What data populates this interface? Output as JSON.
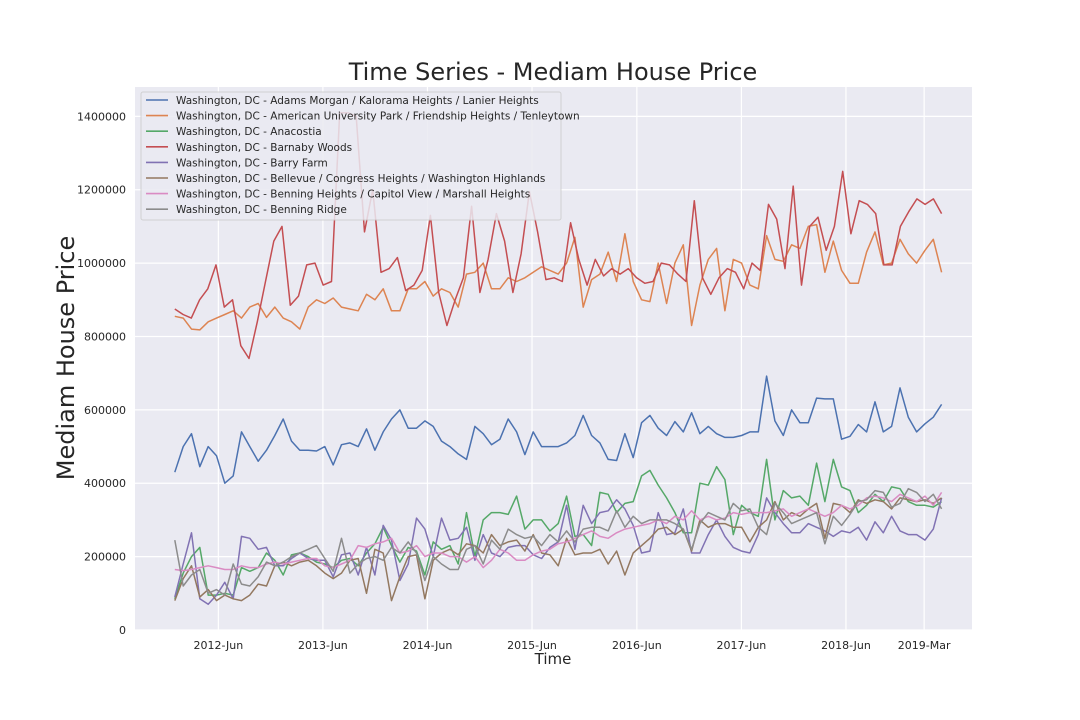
{
  "chart_data": {
    "type": "line",
    "title": "Time Series - Mediam House Price",
    "xlabel": "Time",
    "ylabel": "Mediam House Price",
    "x_axis": {
      "kind": "date",
      "range": [
        "2011-08-15",
        "2019-08-15"
      ],
      "ticks": [
        {
          "date": "2012-06-01",
          "label": "2012-Jun"
        },
        {
          "date": "2013-06-01",
          "label": "2013-Jun"
        },
        {
          "date": "2014-06-01",
          "label": "2014-Jun"
        },
        {
          "date": "2015-06-01",
          "label": "2015-Jun"
        },
        {
          "date": "2016-06-01",
          "label": "2016-Jun"
        },
        {
          "date": "2017-06-01",
          "label": "2017-Jun"
        },
        {
          "date": "2018-06-01",
          "label": "2018-Jun"
        },
        {
          "date": "2019-03-01",
          "label": "2019-Mar"
        }
      ]
    },
    "ylim": [
      0,
      1480000
    ],
    "y_ticks": [
      {
        "value": 0,
        "label": "0"
      },
      {
        "value": 200000,
        "label": "200000"
      },
      {
        "value": 400000,
        "label": "400000"
      },
      {
        "value": 600000,
        "label": "600000"
      },
      {
        "value": 800000,
        "label": "800000"
      },
      {
        "value": 1000000,
        "label": "1000000"
      },
      {
        "value": 1200000,
        "label": "1200000"
      },
      {
        "value": 1400000,
        "label": "1400000"
      }
    ],
    "grid": true,
    "legend_position": "top-left",
    "x_start": "2012-01",
    "x_end": "2019-05",
    "series": [
      {
        "name": "Washington, DC - Adams Morgan / Kalorama Heights / Lanier Heights",
        "color": "#4c72b0",
        "values": [
          430000,
          500000,
          535000,
          445000,
          500000,
          475000,
          400000,
          420000,
          540000,
          500000,
          460000,
          490000,
          530000,
          575000,
          515000,
          490000,
          490000,
          488000,
          500000,
          450000,
          505000,
          510000,
          500000,
          548000,
          490000,
          540000,
          575000,
          600000,
          550000,
          550000,
          570000,
          555000,
          515000,
          500000,
          480000,
          465000,
          555000,
          535000,
          505000,
          520000,
          575000,
          540000,
          478000,
          540000,
          500000,
          500000,
          500000,
          510000,
          530000,
          585000,
          530000,
          510000,
          465000,
          462000,
          535000,
          470000,
          565000,
          585000,
          550000,
          530000,
          568000,
          540000,
          592000,
          535000,
          555000,
          535000,
          525000,
          525000,
          530000,
          540000,
          540000,
          692000,
          570000,
          530000,
          600000,
          565000,
          565000,
          632000,
          630000,
          630000,
          520000,
          528000,
          560000,
          540000,
          622000,
          540000,
          555000,
          660000,
          580000,
          540000,
          562000,
          580000,
          615000
        ]
      },
      {
        "name": "Washington, DC - American University Park / Friendship Heights / Tenleytown",
        "color": "#dd8452",
        "values": [
          855000,
          850000,
          820000,
          818000,
          840000,
          850000,
          860000,
          870000,
          850000,
          880000,
          890000,
          852000,
          880000,
          850000,
          840000,
          820000,
          880000,
          900000,
          890000,
          905000,
          880000,
          875000,
          870000,
          915000,
          900000,
          930000,
          870000,
          870000,
          930000,
          930000,
          950000,
          910000,
          930000,
          920000,
          880000,
          970000,
          975000,
          1000000,
          930000,
          930000,
          960000,
          950000,
          960000,
          975000,
          990000,
          980000,
          970000,
          1000000,
          1070000,
          880000,
          955000,
          970000,
          1030000,
          950000,
          1080000,
          950000,
          900000,
          895000,
          1000000,
          890000,
          1000000,
          1050000,
          830000,
          940000,
          1010000,
          1040000,
          870000,
          1010000,
          1000000,
          940000,
          930000,
          1075000,
          1010000,
          1005000,
          1050000,
          1040000,
          1100000,
          1105000,
          975000,
          1060000,
          980000,
          945000,
          945000,
          1030000,
          1085000,
          995000,
          1000000,
          1065000,
          1025000,
          1000000,
          1035000,
          1065000,
          975000
        ]
      },
      {
        "name": "Washington, DC - Anacostia",
        "color": "#55a868",
        "values": [
          85000,
          155000,
          200000,
          225000,
          95000,
          95000,
          100000,
          95000,
          170000,
          160000,
          170000,
          210000,
          190000,
          150000,
          205000,
          210000,
          200000,
          185000,
          180000,
          170000,
          190000,
          195000,
          175000,
          210000,
          235000,
          280000,
          230000,
          185000,
          225000,
          215000,
          150000,
          240000,
          220000,
          230000,
          180000,
          320000,
          200000,
          300000,
          320000,
          320000,
          315000,
          365000,
          275000,
          300000,
          300000,
          270000,
          290000,
          365000,
          255000,
          260000,
          230000,
          375000,
          370000,
          320000,
          345000,
          350000,
          420000,
          435000,
          395000,
          360000,
          320000,
          265000,
          265000,
          400000,
          395000,
          445000,
          410000,
          260000,
          340000,
          320000,
          310000,
          465000,
          300000,
          380000,
          360000,
          365000,
          340000,
          455000,
          350000,
          465000,
          390000,
          380000,
          320000,
          340000,
          370000,
          350000,
          390000,
          385000,
          350000,
          340000,
          340000,
          335000,
          350000
        ]
      },
      {
        "name": "Washington, DC - Barnaby Woods",
        "color": "#c44e52",
        "values": [
          875000,
          860000,
          850000,
          900000,
          930000,
          995000,
          880000,
          900000,
          775000,
          740000,
          840000,
          950000,
          1060000,
          1100000,
          885000,
          910000,
          995000,
          1000000,
          940000,
          950000,
          1410000,
          1410000,
          1400000,
          1085000,
          1200000,
          975000,
          985000,
          1015000,
          925000,
          940000,
          980000,
          1130000,
          920000,
          830000,
          900000,
          960000,
          1155000,
          920000,
          1010000,
          1135000,
          1060000,
          920000,
          1025000,
          1195000,
          1085000,
          955000,
          960000,
          950000,
          1110000,
          1010000,
          940000,
          1010000,
          965000,
          985000,
          970000,
          985000,
          960000,
          945000,
          950000,
          1000000,
          995000,
          970000,
          950000,
          1170000,
          960000,
          915000,
          960000,
          985000,
          975000,
          930000,
          1000000,
          980000,
          1160000,
          1120000,
          985000,
          1210000,
          940000,
          1100000,
          1125000,
          1035000,
          1100000,
          1250000,
          1080000,
          1170000,
          1160000,
          1135000,
          995000,
          995000,
          1100000,
          1140000,
          1175000,
          1160000,
          1175000,
          1135000
        ]
      },
      {
        "name": "Washington, DC - Barry Farm",
        "color": "#8172b3",
        "values": [
          90000,
          180000,
          265000,
          85000,
          70000,
          95000,
          130000,
          85000,
          255000,
          250000,
          220000,
          225000,
          175000,
          175000,
          195000,
          210000,
          195000,
          190000,
          190000,
          145000,
          205000,
          210000,
          150000,
          225000,
          150000,
          285000,
          245000,
          135000,
          180000,
          305000,
          275000,
          200000,
          305000,
          245000,
          250000,
          280000,
          190000,
          260000,
          210000,
          200000,
          225000,
          230000,
          230000,
          205000,
          195000,
          225000,
          240000,
          340000,
          220000,
          340000,
          290000,
          320000,
          325000,
          355000,
          330000,
          285000,
          210000,
          215000,
          320000,
          260000,
          265000,
          330000,
          210000,
          210000,
          260000,
          300000,
          255000,
          225000,
          215000,
          210000,
          260000,
          360000,
          320000,
          290000,
          265000,
          265000,
          290000,
          280000,
          270000,
          255000,
          270000,
          265000,
          280000,
          245000,
          295000,
          265000,
          310000,
          270000,
          260000,
          260000,
          245000,
          275000,
          360000
        ]
      },
      {
        "name": "Washington, DC - Bellevue / Congress Heights / Washington Highlands",
        "color": "#937860",
        "values": [
          80000,
          140000,
          175000,
          90000,
          110000,
          80000,
          95000,
          85000,
          80000,
          95000,
          125000,
          120000,
          175000,
          185000,
          175000,
          185000,
          190000,
          175000,
          155000,
          140000,
          155000,
          190000,
          195000,
          100000,
          220000,
          210000,
          80000,
          145000,
          200000,
          205000,
          85000,
          190000,
          210000,
          220000,
          205000,
          235000,
          230000,
          210000,
          260000,
          230000,
          240000,
          245000,
          215000,
          260000,
          210000,
          205000,
          175000,
          250000,
          205000,
          210000,
          210000,
          220000,
          180000,
          215000,
          150000,
          210000,
          230000,
          250000,
          275000,
          280000,
          260000,
          275000,
          215000,
          300000,
          280000,
          290000,
          290000,
          280000,
          280000,
          240000,
          280000,
          300000,
          350000,
          300000,
          320000,
          310000,
          330000,
          345000,
          250000,
          345000,
          340000,
          320000,
          355000,
          345000,
          355000,
          350000,
          330000,
          360000,
          355000,
          350000,
          355000,
          345000,
          360000
        ]
      },
      {
        "name": "Washington, DC - Benning Heights / Capitol View / Marshall Heights",
        "color": "#da8bc3",
        "values": [
          165000,
          162000,
          165000,
          170000,
          175000,
          170000,
          165000,
          165000,
          175000,
          170000,
          170000,
          180000,
          185000,
          180000,
          185000,
          190000,
          195000,
          195000,
          175000,
          170000,
          180000,
          190000,
          230000,
          225000,
          235000,
          240000,
          250000,
          210000,
          215000,
          230000,
          200000,
          210000,
          210000,
          200000,
          200000,
          185000,
          200000,
          170000,
          190000,
          220000,
          210000,
          190000,
          190000,
          205000,
          215000,
          220000,
          235000,
          240000,
          250000,
          260000,
          270000,
          255000,
          250000,
          265000,
          275000,
          280000,
          285000,
          290000,
          300000,
          290000,
          310000,
          300000,
          325000,
          300000,
          310000,
          300000,
          305000,
          320000,
          315000,
          320000,
          320000,
          320000,
          325000,
          330000,
          310000,
          320000,
          330000,
          320000,
          310000,
          320000,
          340000,
          330000,
          340000,
          360000,
          365000,
          360000,
          350000,
          370000,
          360000,
          350000,
          365000,
          340000,
          375000
        ]
      },
      {
        "name": "Washington, DC - Benning Ridge",
        "color": "#8c8c8c",
        "values": [
          245000,
          120000,
          150000,
          165000,
          100000,
          110000,
          95000,
          180000,
          125000,
          120000,
          145000,
          185000,
          175000,
          185000,
          200000,
          210000,
          220000,
          230000,
          195000,
          160000,
          250000,
          155000,
          180000,
          195000,
          200000,
          190000,
          225000,
          210000,
          240000,
          210000,
          135000,
          200000,
          180000,
          165000,
          165000,
          220000,
          230000,
          180000,
          245000,
          220000,
          275000,
          260000,
          250000,
          255000,
          230000,
          260000,
          240000,
          270000,
          240000,
          275000,
          280000,
          280000,
          270000,
          325000,
          280000,
          310000,
          290000,
          300000,
          300000,
          300000,
          290000,
          275000,
          220000,
          290000,
          320000,
          310000,
          300000,
          345000,
          325000,
          330000,
          280000,
          260000,
          345000,
          320000,
          290000,
          300000,
          310000,
          320000,
          235000,
          310000,
          285000,
          315000,
          350000,
          355000,
          380000,
          375000,
          335000,
          345000,
          385000,
          375000,
          350000,
          370000,
          330000
        ]
      }
    ]
  }
}
